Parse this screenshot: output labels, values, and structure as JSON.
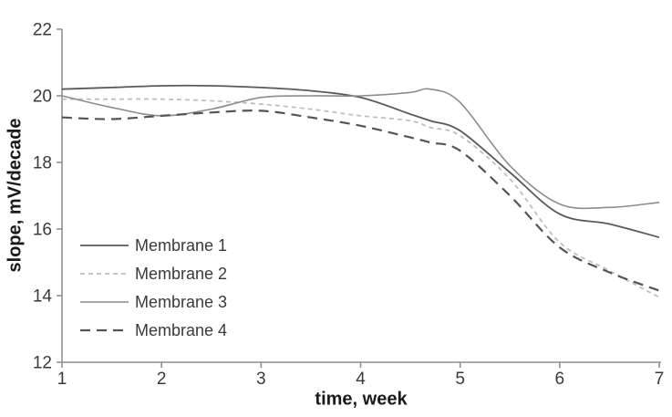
{
  "chart_data": {
    "type": "line",
    "title": "",
    "xlabel": "time, week",
    "ylabel": "slope, mV/decade",
    "xlim": [
      1,
      7
    ],
    "ylim": [
      12,
      22
    ],
    "xticks": [
      1,
      2,
      3,
      4,
      5,
      6,
      7
    ],
    "yticks": [
      12,
      14,
      16,
      18,
      20,
      22
    ],
    "grid": false,
    "legend_position": "inside-bottom-left",
    "x": [
      1,
      1.5,
      2,
      2.5,
      3,
      3.5,
      4,
      4.5,
      4.7,
      5,
      5.5,
      6,
      6.5,
      7
    ],
    "series": [
      {
        "name": "Membrane 1",
        "values": [
          20.2,
          20.25,
          20.3,
          20.3,
          20.25,
          20.15,
          19.95,
          19.45,
          19.25,
          18.95,
          17.7,
          16.45,
          16.15,
          15.75
        ],
        "color": "#595959",
        "dash": "solid",
        "width": 1.8
      },
      {
        "name": "Membrane 2",
        "values": [
          19.9,
          19.9,
          19.9,
          19.85,
          19.75,
          19.6,
          19.4,
          19.25,
          19.05,
          18.8,
          17.5,
          15.6,
          14.75,
          13.95
        ],
        "color": "#bfbfbf",
        "dash": "5,4",
        "width": 1.8
      },
      {
        "name": "Membrane 3",
        "values": [
          20.0,
          19.65,
          19.4,
          19.6,
          19.95,
          20.0,
          20.0,
          20.1,
          20.2,
          19.8,
          17.9,
          16.75,
          16.65,
          16.8
        ],
        "color": "#8c8c8c",
        "dash": "solid",
        "width": 1.6
      },
      {
        "name": "Membrane 4",
        "values": [
          19.35,
          19.3,
          19.4,
          19.5,
          19.55,
          19.35,
          19.1,
          18.75,
          18.6,
          18.35,
          17.0,
          15.45,
          14.7,
          14.15
        ],
        "color": "#545454",
        "dash": "11,7",
        "width": 2.2
      }
    ],
    "axis_color": "#8f8f8f",
    "tick_label_color": "#3a3a3a",
    "legend_text_color": "#3a3a3a"
  }
}
